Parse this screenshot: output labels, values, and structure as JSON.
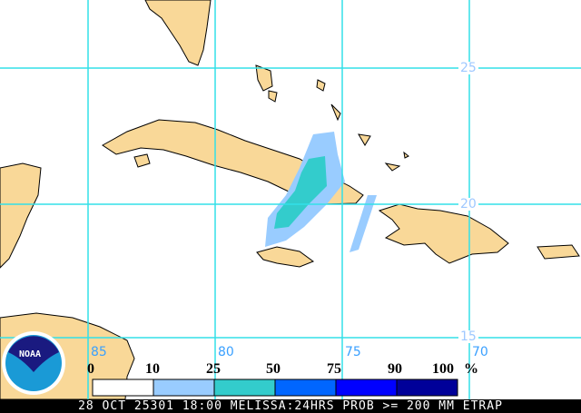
{
  "map": {
    "latitude_labels": [
      "25",
      "20",
      "15"
    ],
    "longitude_labels": [
      "85",
      "80",
      "75",
      "70"
    ],
    "land_color": "#f9d898",
    "grid_color": "#33e0e8"
  },
  "legend": {
    "ticks": [
      "0",
      "10",
      "25",
      "50",
      "75",
      "90",
      "100"
    ],
    "unit": "%",
    "bins": [
      {
        "range": "0-10",
        "color": "#ffffff"
      },
      {
        "range": "10-25",
        "color": "#99ccff"
      },
      {
        "range": "25-50",
        "color": "#33cccc"
      },
      {
        "range": "50-75",
        "color": "#0066ff"
      },
      {
        "range": "75-90",
        "color": "#0000ff"
      },
      {
        "range": "90-100",
        "color": "#000099"
      }
    ]
  },
  "logo": {
    "text": "NOAA"
  },
  "footer": {
    "caption": "28 OCT 25301 18:00 MELISSA:24HRS PROB >= 200 MM ETRAP"
  }
}
